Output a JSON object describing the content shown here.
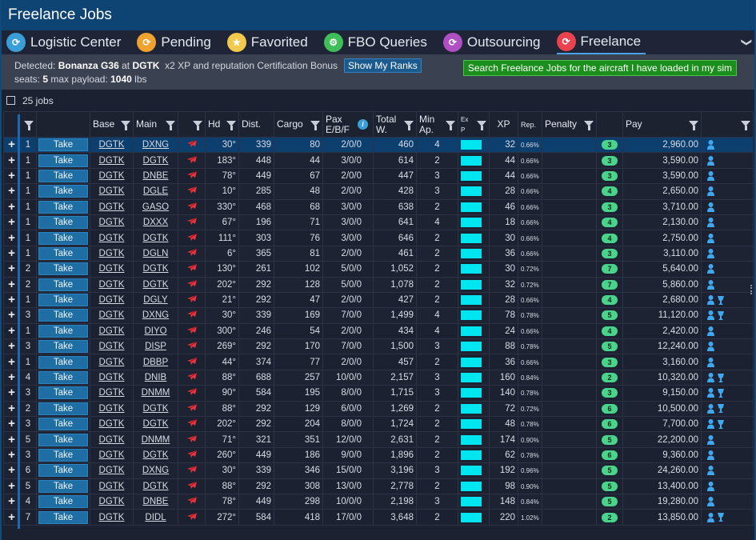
{
  "window": {
    "title": "Freelance Jobs"
  },
  "tabs": [
    {
      "label": "Logistic Center",
      "icon": "logistic-icon",
      "color": "#3a9fd8"
    },
    {
      "label": "Pending",
      "icon": "pending-icon",
      "color": "#f0a22e"
    },
    {
      "label": "Favorited",
      "icon": "star-icon",
      "color": "#f2c94c"
    },
    {
      "label": "FBO Queries",
      "icon": "fbo-icon",
      "color": "#3fbf5a"
    },
    {
      "label": "Outsourcing",
      "icon": "outsourcing-icon",
      "color": "#b04fc4"
    },
    {
      "label": "Freelance",
      "icon": "freelance-icon",
      "color": "#e8434f",
      "active": true
    }
  ],
  "info": {
    "detected_prefix": "Detected:",
    "aircraft": "Bonanza G36",
    "at": "at",
    "airport": "DGTK",
    "bonus": "x2 XP and reputation Certification Bonus",
    "ranks_button": "Show My Ranks",
    "seats_label": "seats:",
    "seats": "5",
    "payload_label": "max payload:",
    "payload": "1040",
    "payload_unit": "lbs",
    "search_button": "Search Freelance Jobs for the aircraft I have loaded in my sim"
  },
  "jobs_count": "25 jobs",
  "columns": {
    "base": "Base",
    "main": "Main",
    "hd": "Hd",
    "dist": "Dist.",
    "cargo": "Cargo",
    "pax": "Pax E/B/F",
    "total": "Total W.",
    "minap": "Min Ap.",
    "exp": "Ex P",
    "xp": "XP",
    "rep": "Rep.",
    "penalty": "Penalty",
    "pay": "Pay"
  },
  "take_label": "Take",
  "rows": [
    {
      "n": "1",
      "base": "DGTK",
      "main": "DXNG",
      "hd": "30°",
      "dist": "339",
      "cargo": "80",
      "pax": "2/0/0",
      "total": "460",
      "minap": "4",
      "xp": "32",
      "rep": "0.66%",
      "badge": "3",
      "pay": "2,960.00",
      "cup": false,
      "selected": true
    },
    {
      "n": "1",
      "base": "DGTK",
      "main": "DGTK",
      "hd": "183°",
      "dist": "448",
      "cargo": "44",
      "pax": "3/0/0",
      "total": "614",
      "minap": "2",
      "xp": "44",
      "rep": "0.66%",
      "badge": "3",
      "pay": "3,590.00",
      "cup": false
    },
    {
      "n": "1",
      "base": "DGTK",
      "main": "DNBE",
      "hd": "78°",
      "dist": "449",
      "cargo": "67",
      "pax": "2/0/0",
      "total": "447",
      "minap": "3",
      "xp": "44",
      "rep": "0.66%",
      "badge": "3",
      "pay": "3,590.00",
      "cup": false
    },
    {
      "n": "1",
      "base": "DGTK",
      "main": "DGLE",
      "hd": "10°",
      "dist": "285",
      "cargo": "48",
      "pax": "2/0/0",
      "total": "428",
      "minap": "3",
      "xp": "28",
      "rep": "0.66%",
      "badge": "4",
      "pay": "2,650.00",
      "cup": false
    },
    {
      "n": "1",
      "base": "DGTK",
      "main": "GASO",
      "hd": "330°",
      "dist": "468",
      "cargo": "68",
      "pax": "3/0/0",
      "total": "638",
      "minap": "2",
      "xp": "46",
      "rep": "0.66%",
      "badge": "3",
      "pay": "3,710.00",
      "cup": false
    },
    {
      "n": "1",
      "base": "DGTK",
      "main": "DXXX",
      "hd": "67°",
      "dist": "196",
      "cargo": "71",
      "pax": "3/0/0",
      "total": "641",
      "minap": "4",
      "xp": "18",
      "rep": "0.66%",
      "badge": "4",
      "pay": "2,130.00",
      "cup": false
    },
    {
      "n": "1",
      "base": "DGTK",
      "main": "DGTK",
      "hd": "111°",
      "dist": "303",
      "cargo": "76",
      "pax": "3/0/0",
      "total": "646",
      "minap": "2",
      "xp": "30",
      "rep": "0.66%",
      "badge": "4",
      "pay": "2,750.00",
      "cup": false
    },
    {
      "n": "1",
      "base": "DGTK",
      "main": "DGLN",
      "hd": "6°",
      "dist": "365",
      "cargo": "81",
      "pax": "2/0/0",
      "total": "461",
      "minap": "2",
      "xp": "36",
      "rep": "0.66%",
      "badge": "3",
      "pay": "3,110.00",
      "cup": false
    },
    {
      "n": "2",
      "base": "DGTK",
      "main": "DGTK",
      "hd": "130°",
      "dist": "261",
      "cargo": "102",
      "pax": "5/0/0",
      "total": "1,052",
      "minap": "2",
      "xp": "30",
      "rep": "0.72%",
      "badge": "7",
      "pay": "5,640.00",
      "cup": false
    },
    {
      "n": "2",
      "base": "DGTK",
      "main": "DGTK",
      "hd": "202°",
      "dist": "292",
      "cargo": "128",
      "pax": "5/0/0",
      "total": "1,078",
      "minap": "2",
      "xp": "32",
      "rep": "0.72%",
      "badge": "7",
      "pay": "5,860.00",
      "cup": false
    },
    {
      "n": "1",
      "base": "DGTK",
      "main": "DGLY",
      "hd": "21°",
      "dist": "292",
      "cargo": "47",
      "pax": "2/0/0",
      "total": "427",
      "minap": "2",
      "xp": "28",
      "rep": "0.66%",
      "badge": "4",
      "pay": "2,680.00",
      "cup": true
    },
    {
      "n": "3",
      "base": "DGTK",
      "main": "DXNG",
      "hd": "30°",
      "dist": "339",
      "cargo": "169",
      "pax": "7/0/0",
      "total": "1,499",
      "minap": "4",
      "xp": "78",
      "rep": "0.78%",
      "badge": "5",
      "pay": "11,120.00",
      "cup": true
    },
    {
      "n": "1",
      "base": "DGTK",
      "main": "DIYO",
      "hd": "300°",
      "dist": "246",
      "cargo": "54",
      "pax": "2/0/0",
      "total": "434",
      "minap": "4",
      "xp": "24",
      "rep": "0.66%",
      "badge": "4",
      "pay": "2,420.00",
      "cup": false
    },
    {
      "n": "3",
      "base": "DGTK",
      "main": "DISP",
      "hd": "269°",
      "dist": "292",
      "cargo": "170",
      "pax": "7/0/0",
      "total": "1,500",
      "minap": "3",
      "xp": "88",
      "rep": "0.78%",
      "badge": "5",
      "pay": "12,240.00",
      "cup": false
    },
    {
      "n": "1",
      "base": "DGTK",
      "main": "DBBP",
      "hd": "44°",
      "dist": "374",
      "cargo": "77",
      "pax": "2/0/0",
      "total": "457",
      "minap": "2",
      "xp": "36",
      "rep": "0.66%",
      "badge": "3",
      "pay": "3,160.00",
      "cup": false
    },
    {
      "n": "4",
      "base": "DGTK",
      "main": "DNIB",
      "hd": "88°",
      "dist": "688",
      "cargo": "257",
      "pax": "10/0/0",
      "total": "2,157",
      "minap": "3",
      "xp": "160",
      "rep": "0.84%",
      "badge": "2",
      "pay": "10,320.00",
      "cup": true
    },
    {
      "n": "3",
      "base": "DGTK",
      "main": "DNMM",
      "hd": "90°",
      "dist": "584",
      "cargo": "195",
      "pax": "8/0/0",
      "total": "1,715",
      "minap": "3",
      "xp": "140",
      "rep": "0.78%",
      "badge": "3",
      "pay": "9,150.00",
      "cup": true
    },
    {
      "n": "2",
      "base": "DGTK",
      "main": "DGTK",
      "hd": "88°",
      "dist": "292",
      "cargo": "129",
      "pax": "6/0/0",
      "total": "1,269",
      "minap": "2",
      "xp": "72",
      "rep": "0.72%",
      "badge": "6",
      "pay": "10,500.00",
      "cup": true
    },
    {
      "n": "3",
      "base": "DGTK",
      "main": "DGTK",
      "hd": "202°",
      "dist": "292",
      "cargo": "204",
      "pax": "8/0/0",
      "total": "1,724",
      "minap": "2",
      "xp": "48",
      "rep": "0.78%",
      "badge": "6",
      "pay": "7,700.00",
      "cup": true
    },
    {
      "n": "5",
      "base": "DGTK",
      "main": "DNMM",
      "hd": "71°",
      "dist": "321",
      "cargo": "351",
      "pax": "12/0/0",
      "total": "2,631",
      "minap": "2",
      "xp": "174",
      "rep": "0.90%",
      "badge": "5",
      "pay": "22,200.00",
      "cup": false
    },
    {
      "n": "3",
      "base": "DGTK",
      "main": "DGTK",
      "hd": "260°",
      "dist": "449",
      "cargo": "186",
      "pax": "9/0/0",
      "total": "1,896",
      "minap": "2",
      "xp": "62",
      "rep": "0.78%",
      "badge": "6",
      "pay": "9,360.00",
      "cup": false
    },
    {
      "n": "6",
      "base": "DGTK",
      "main": "DXNG",
      "hd": "30°",
      "dist": "339",
      "cargo": "346",
      "pax": "15/0/0",
      "total": "3,196",
      "minap": "3",
      "xp": "192",
      "rep": "0.96%",
      "badge": "5",
      "pay": "24,260.00",
      "cup": false
    },
    {
      "n": "5",
      "base": "DGTK",
      "main": "DGTK",
      "hd": "88°",
      "dist": "292",
      "cargo": "308",
      "pax": "13/0/0",
      "total": "2,778",
      "minap": "2",
      "xp": "98",
      "rep": "0.90%",
      "badge": "5",
      "pay": "13,400.00",
      "cup": false
    },
    {
      "n": "4",
      "base": "DGTK",
      "main": "DNBE",
      "hd": "78°",
      "dist": "449",
      "cargo": "298",
      "pax": "10/0/0",
      "total": "2,198",
      "minap": "3",
      "xp": "148",
      "rep": "0.84%",
      "badge": "5",
      "pay": "19,280.00",
      "cup": false
    },
    {
      "n": "7",
      "base": "DGTK",
      "main": "DIDL",
      "hd": "272°",
      "dist": "584",
      "cargo": "418",
      "pax": "17/0/0",
      "total": "3,648",
      "minap": "2",
      "xp": "220",
      "rep": "1.02%",
      "badge": "2",
      "pay": "13,850.00",
      "cup": true
    }
  ],
  "colors": {
    "accent": "#0d4474",
    "take": "#1e6ea3",
    "xp_bar": "#00e6f0",
    "badge": "#49d38b",
    "search_button": "#1b8f1b"
  }
}
